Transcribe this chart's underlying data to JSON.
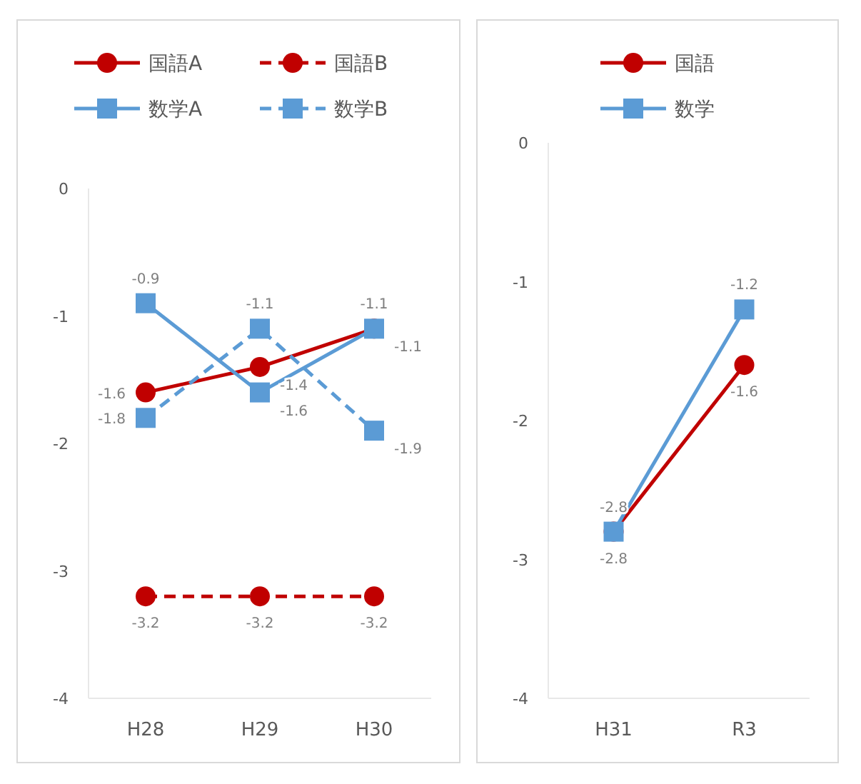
{
  "chart_data": [
    {
      "type": "line",
      "categories": [
        "H28",
        "H29",
        "H30"
      ],
      "ylim": [
        -4,
        0
      ],
      "yticks": [
        0,
        -1,
        -2,
        -3,
        -4
      ],
      "legend": "top",
      "data_labels": true,
      "series": [
        {
          "name": "国語A",
          "color": "#c00000",
          "marker": "circle",
          "line_style": "solid",
          "values": [
            -1.6,
            -1.4,
            -1.1
          ]
        },
        {
          "name": "国語B",
          "color": "#c00000",
          "marker": "circle",
          "line_style": "dashed",
          "values": [
            -3.2,
            -3.2,
            -3.2
          ]
        },
        {
          "name": "数学A",
          "color": "#5b9bd5",
          "marker": "square",
          "line_style": "solid",
          "values": [
            -0.9,
            -1.6,
            -1.1
          ]
        },
        {
          "name": "数学B",
          "color": "#5b9bd5",
          "marker": "square",
          "line_style": "dashed",
          "values": [
            -1.8,
            -1.1,
            -1.9
          ]
        }
      ]
    },
    {
      "type": "line",
      "categories": [
        "H31",
        "R3"
      ],
      "ylim": [
        -4,
        0
      ],
      "yticks": [
        0,
        -1,
        -2,
        -3,
        -4
      ],
      "legend": "top",
      "data_labels": true,
      "series": [
        {
          "name": "国語",
          "color": "#c00000",
          "marker": "circle",
          "line_style": "solid",
          "values": [
            -2.8,
            -1.6
          ]
        },
        {
          "name": "数学",
          "color": "#5b9bd5",
          "marker": "square",
          "line_style": "solid",
          "values": [
            -2.8,
            -1.2
          ]
        }
      ]
    }
  ]
}
